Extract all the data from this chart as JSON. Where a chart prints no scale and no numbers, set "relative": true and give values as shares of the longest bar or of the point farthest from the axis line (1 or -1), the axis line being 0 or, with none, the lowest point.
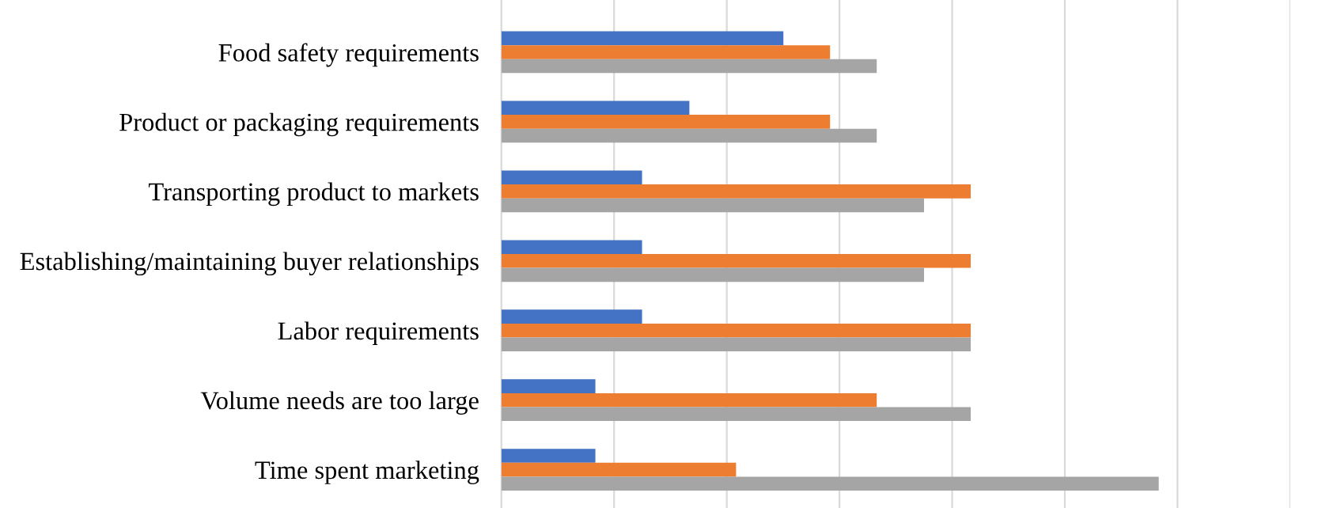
{
  "chart_data": {
    "type": "bar",
    "orientation": "horizontal",
    "relative": true,
    "grid": "x",
    "categories": [
      "Food safety requirements",
      "Product or packaging requirements",
      "Transporting product to markets",
      "Establishing/maintaining buyer relationships",
      "Labor requirements",
      "Volume needs are too large",
      "Time spent marketing"
    ],
    "series": [
      {
        "color": "#4472c4",
        "values": [
          0.429,
          0.286,
          0.214,
          0.214,
          0.214,
          0.143,
          0.143
        ]
      },
      {
        "color": "#ed7d31",
        "values": [
          0.5,
          0.5,
          0.714,
          0.714,
          0.714,
          0.571,
          0.357
        ]
      },
      {
        "color": "#a5a5a5",
        "values": [
          0.571,
          0.571,
          0.643,
          0.643,
          0.714,
          0.714,
          1
        ]
      }
    ]
  }
}
